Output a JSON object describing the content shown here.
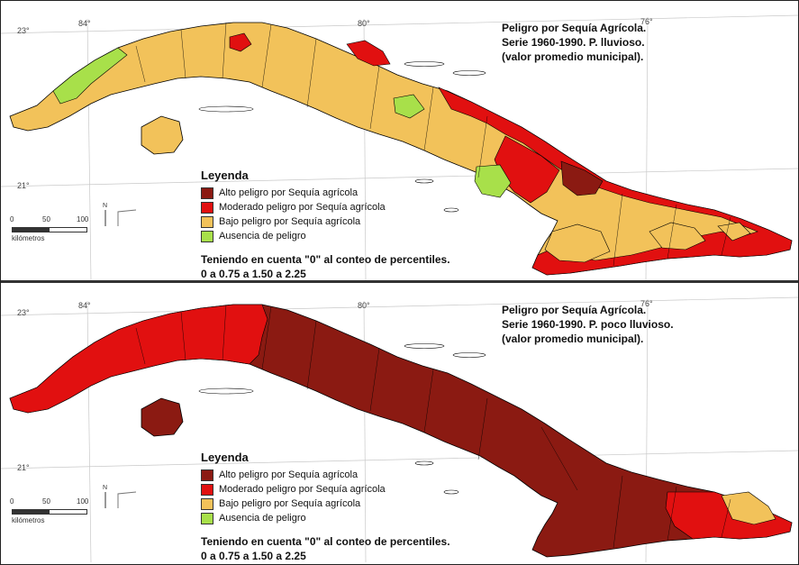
{
  "colors": {
    "high": "#8b1a12",
    "moderate": "#e11010",
    "low": "#f2c25a",
    "none": "#a8e04a",
    "outline": "#000000",
    "water": "#ffffff"
  },
  "legend": {
    "title": "Leyenda",
    "items": [
      {
        "label": "Alto peligro por Sequía agrícola",
        "color": "#8b1a12"
      },
      {
        "label": "Moderado peligro por Sequía agrícola",
        "color": "#e11010"
      },
      {
        "label": "Bajo peligro por Sequía agrícola",
        "color": "#f2c25a"
      },
      {
        "label": "Ausencia de peligro",
        "color": "#a8e04a"
      }
    ],
    "note_line1": "Teniendo en cuenta \"0\" al conteo de percentiles.",
    "note_line2": "0 a 0.75 a 1.50 a 2.25"
  },
  "coordinates": {
    "lon_84": "84°",
    "lon_80": "80°",
    "lon_76": "76°",
    "lat_23": "23°",
    "lat_21": "21°"
  },
  "scale": {
    "tick_0": "0",
    "tick_50": "50",
    "tick_100": "100",
    "unit": "kilómetros"
  },
  "north_label": "N",
  "maps": [
    {
      "title_line1": "Peligro por Sequía Agrícola.",
      "title_line2": "Serie 1960-1990. P. lluvioso.",
      "title_line3": "(valor promedio municipal).",
      "dominant_class": "mixed"
    },
    {
      "title_line1": "Peligro por Sequía Agrícola.",
      "title_line2": "Serie 1960-1990. P. poco lluvioso.",
      "title_line3": "(valor promedio municipal).",
      "dominant_class": "high"
    }
  ]
}
